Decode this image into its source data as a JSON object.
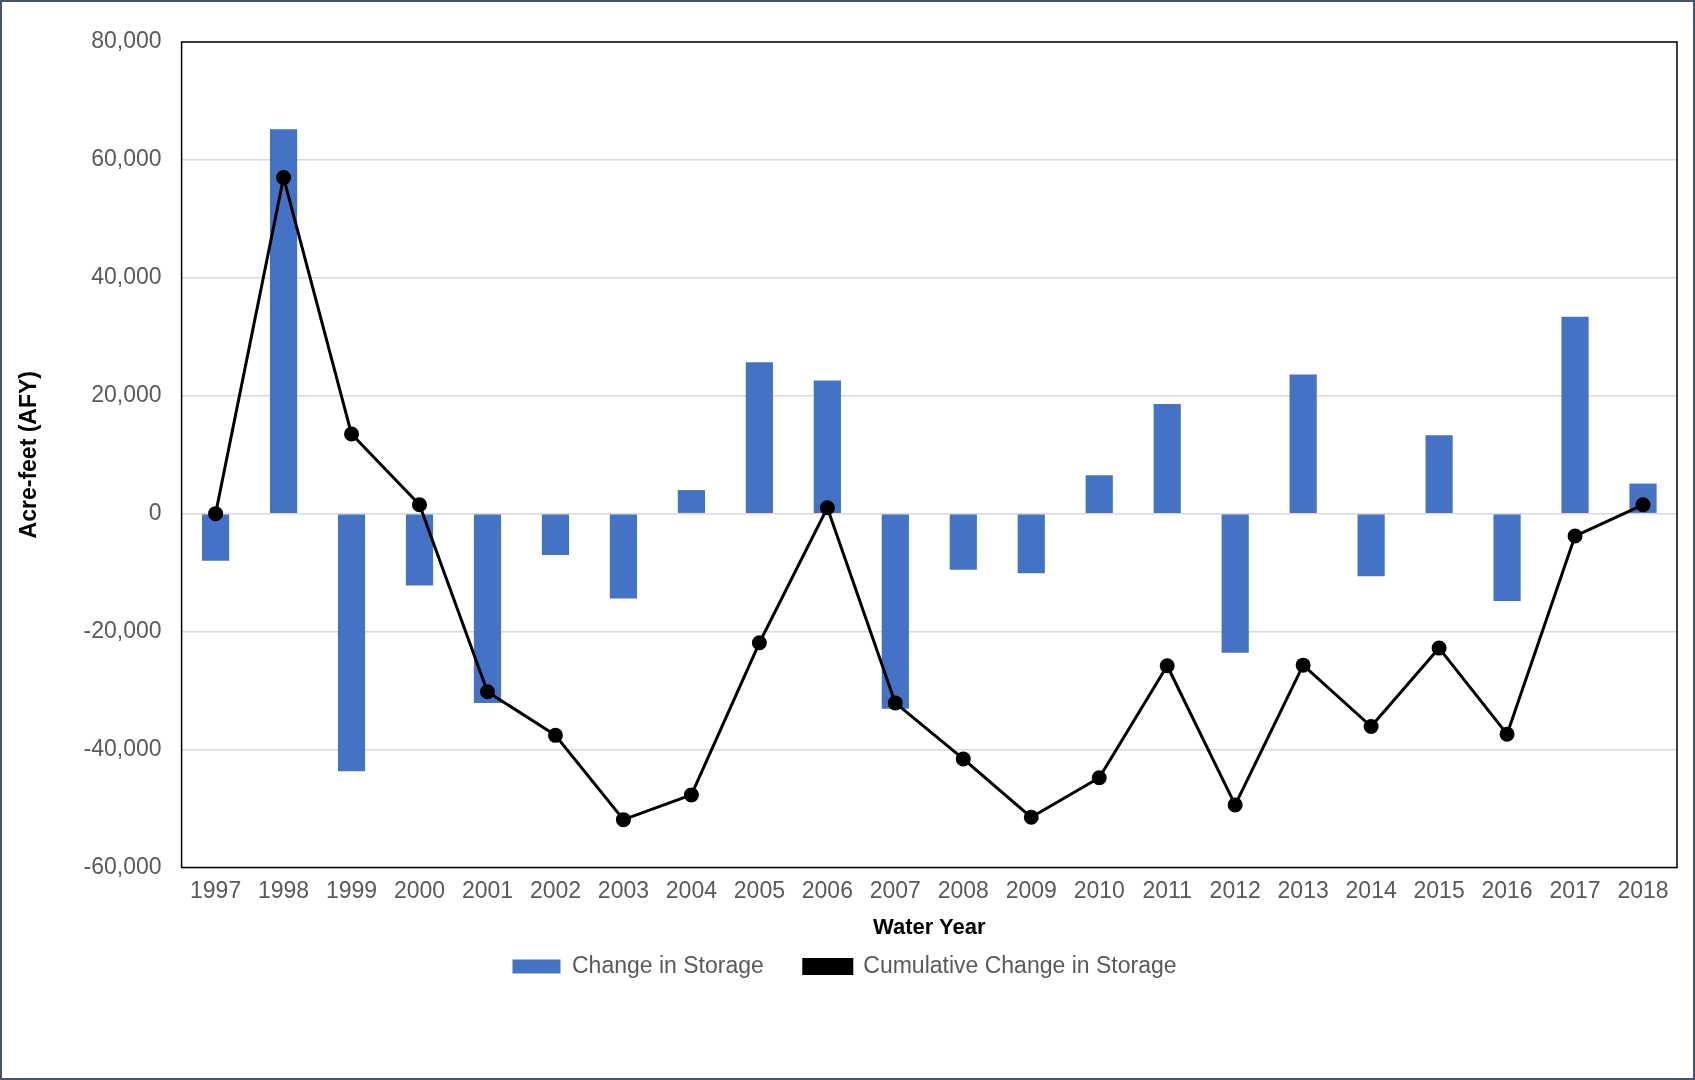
{
  "chart_data": {
    "type": "bar",
    "xlabel": "Water Year",
    "ylabel": "Acre-feet (AFY)",
    "categories": [
      "1997",
      "1998",
      "1999",
      "2000",
      "2001",
      "2002",
      "2003",
      "2004",
      "2005",
      "2006",
      "2007",
      "2008",
      "2009",
      "2010",
      "2011",
      "2012",
      "2013",
      "2014",
      "2015",
      "2016",
      "2017",
      "2018"
    ],
    "series": [
      {
        "name": "Change in Storage",
        "color": "#4472c4",
        "values": [
          -8000,
          65200,
          -43700,
          -12200,
          -32100,
          -7000,
          -14400,
          4000,
          25700,
          22600,
          -33100,
          -9500,
          -10100,
          6500,
          18600,
          -23600,
          23600,
          -10600,
          13300,
          -14800,
          33400,
          5100
        ]
      },
      {
        "name": "Cumulative Change in Storage",
        "type": "line",
        "color": "#000000",
        "values": [
          0,
          57000,
          13500,
          1500,
          -30200,
          -37600,
          -51900,
          -47700,
          -21900,
          1000,
          -32100,
          -41600,
          -51500,
          -44800,
          -25800,
          -49400,
          -25700,
          -36100,
          -22800,
          -37400,
          -3800,
          1500
        ]
      }
    ],
    "ylim": [
      -60000,
      80000
    ],
    "yticks": [
      {
        "value": -60000,
        "label": "-60,000"
      },
      {
        "value": -40000,
        "label": "-40,000"
      },
      {
        "value": -20000,
        "label": "-20,000"
      },
      0,
      {
        "value": 20000,
        "label": "20,000"
      },
      {
        "value": 40000,
        "label": "40,000"
      },
      {
        "value": 60000,
        "label": "60,000"
      },
      {
        "value": 80000,
        "label": "80,000"
      }
    ],
    "grid": "y",
    "legend": "bottom",
    "marker": "circle",
    "line_style": "solid"
  }
}
